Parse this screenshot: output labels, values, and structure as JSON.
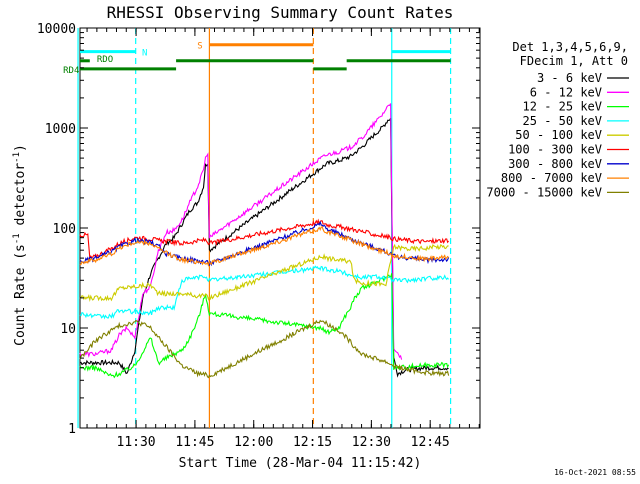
{
  "chart_data": {
    "type": "line",
    "title": "RHESSI Observing Summary Count Rates",
    "xlabel": "Start Time (28-Mar-04 11:15:42)",
    "ylabel_main": "Count Rate (s",
    "ylabel_sup": "-1",
    "ylabel_tail": " detector",
    "ylabel_close": ")",
    "x_unit": "minutes since 11:15:42",
    "xlim": [
      0,
      102
    ],
    "ylim": [
      1,
      10000
    ],
    "y_scale": "log",
    "x_ticks": [
      {
        "label": "11:30",
        "value": 14.3
      },
      {
        "label": "11:45",
        "value": 29.3
      },
      {
        "label": "12:00",
        "value": 44.3
      },
      {
        "label": "12:15",
        "value": 59.3
      },
      {
        "label": "12:30",
        "value": 74.3
      },
      {
        "label": "12:45",
        "value": 89.3
      }
    ],
    "y_ticks": [
      {
        "label": "1",
        "value": 1
      },
      {
        "label": "10",
        "value": 10
      },
      {
        "label": "100",
        "value": 100
      },
      {
        "label": "1000",
        "value": 1000
      },
      {
        "label": "10000",
        "value": 10000
      }
    ],
    "legend_header": [
      "Det 1,3,4,5,6,9,",
      "FDecim 1, Att 0"
    ],
    "legend_placement": "right",
    "series": [
      {
        "name": "3 - 6 keV",
        "color": "#000000",
        "points": [
          [
            0,
            4.5
          ],
          [
            10,
            4.5
          ],
          [
            12,
            3.5
          ],
          [
            14,
            6
          ],
          [
            16,
            20
          ],
          [
            18,
            35
          ],
          [
            20,
            50
          ],
          [
            22,
            70
          ],
          [
            24,
            80
          ],
          [
            26,
            110
          ],
          [
            28,
            150
          ],
          [
            30,
            180
          ],
          [
            31.5,
            260
          ],
          [
            32,
            420
          ],
          [
            32.6,
            450
          ],
          [
            33,
            60
          ],
          [
            61.5,
            400
          ],
          [
            63,
            440
          ],
          [
            66,
            470
          ],
          [
            69,
            520
          ],
          [
            72,
            650
          ],
          [
            75,
            850
          ],
          [
            77,
            1000
          ],
          [
            78.5,
            1200
          ],
          [
            79.2,
            1250
          ],
          [
            80,
            5
          ],
          [
            81,
            3.5
          ],
          [
            83,
            3.8
          ],
          [
            88,
            4
          ],
          [
            94,
            4
          ]
        ]
      },
      {
        "name": "6 - 12 keV",
        "color": "#ff00ff",
        "points": [
          [
            0,
            5.5
          ],
          [
            4,
            5.5
          ],
          [
            8,
            6
          ],
          [
            10,
            8.5
          ],
          [
            12,
            10
          ],
          [
            14,
            8
          ],
          [
            16,
            22
          ],
          [
            18,
            26
          ],
          [
            20,
            60
          ],
          [
            22,
            90
          ],
          [
            24,
            95
          ],
          [
            26,
            120
          ],
          [
            28,
            180
          ],
          [
            30,
            260
          ],
          [
            31.5,
            380
          ],
          [
            32,
            510
          ],
          [
            32.6,
            530
          ],
          [
            33,
            80
          ],
          [
            61.5,
            500
          ],
          [
            63,
            540
          ],
          [
            66,
            580
          ],
          [
            69,
            640
          ],
          [
            72,
            800
          ],
          [
            75,
            1100
          ],
          [
            77,
            1350
          ],
          [
            78.5,
            1650
          ],
          [
            79.2,
            1800
          ],
          [
            80,
            6
          ],
          [
            81,
            5.5
          ],
          [
            82,
            5
          ]
        ]
      },
      {
        "name": "12 - 25 keV",
        "color": "#00ff00",
        "points": [
          [
            0,
            4
          ],
          [
            4,
            4
          ],
          [
            8,
            3.3
          ],
          [
            10,
            3.5
          ],
          [
            14,
            4.2
          ],
          [
            18,
            8
          ],
          [
            20,
            4.5
          ],
          [
            22,
            5
          ],
          [
            24,
            5.5
          ],
          [
            26,
            6
          ],
          [
            28,
            8
          ],
          [
            30,
            12
          ],
          [
            32,
            22
          ],
          [
            33,
            14
          ],
          [
            61.5,
            10
          ],
          [
            63,
            9
          ],
          [
            66,
            10
          ],
          [
            68,
            14
          ],
          [
            69,
            16
          ],
          [
            70,
            20
          ],
          [
            72,
            25
          ],
          [
            75,
            28
          ],
          [
            78,
            32
          ],
          [
            79.5,
            35
          ],
          [
            80,
            4
          ],
          [
            86,
            4.2
          ],
          [
            90,
            4.3
          ],
          [
            94,
            4.3
          ]
        ]
      },
      {
        "name": "25 - 50 keV",
        "color": "#00ffff",
        "points": [
          [
            0,
            14
          ],
          [
            4,
            13
          ],
          [
            8,
            13
          ],
          [
            10,
            15
          ],
          [
            14,
            14.5
          ],
          [
            18,
            14
          ],
          [
            20,
            16
          ],
          [
            24,
            16
          ],
          [
            26,
            30
          ],
          [
            30,
            32
          ],
          [
            32,
            33
          ],
          [
            33,
            30
          ],
          [
            61.5,
            40
          ],
          [
            63,
            38
          ],
          [
            66,
            37
          ],
          [
            69,
            34
          ],
          [
            72,
            32
          ],
          [
            75,
            33
          ],
          [
            78,
            32
          ],
          [
            80,
            30
          ],
          [
            84,
            30
          ],
          [
            88,
            31
          ],
          [
            91,
            32
          ],
          [
            94,
            32
          ]
        ]
      },
      {
        "name": "50 - 100 keV",
        "color": "#cccc00",
        "points": [
          [
            0,
            20
          ],
          [
            4,
            20
          ],
          [
            8,
            20
          ],
          [
            10,
            25
          ],
          [
            14,
            26
          ],
          [
            18,
            27
          ],
          [
            20,
            22
          ],
          [
            24,
            22
          ],
          [
            26,
            22
          ],
          [
            30,
            21
          ],
          [
            32,
            21
          ],
          [
            33,
            20
          ],
          [
            61.5,
            52
          ],
          [
            63,
            50
          ],
          [
            66,
            48
          ],
          [
            69,
            46
          ],
          [
            70,
            30
          ],
          [
            72,
            28
          ],
          [
            75,
            28
          ],
          [
            78,
            27
          ],
          [
            80,
            65
          ],
          [
            84,
            62
          ],
          [
            88,
            63
          ],
          [
            91,
            65
          ],
          [
            94,
            65
          ]
        ]
      },
      {
        "name": "100 - 300 keV",
        "color": "#ff0000",
        "points": [
          [
            0,
            85
          ],
          [
            2,
            85
          ],
          [
            2.5,
            50
          ],
          [
            4,
            52
          ],
          [
            8,
            62
          ],
          [
            10,
            70
          ],
          [
            14,
            80
          ],
          [
            18,
            78
          ],
          [
            20,
            75
          ],
          [
            24,
            72
          ],
          [
            26,
            70
          ],
          [
            30,
            74
          ],
          [
            32,
            76
          ],
          [
            33,
            70
          ],
          [
            61.5,
            115
          ],
          [
            63,
            108
          ],
          [
            66,
            103
          ],
          [
            69,
            98
          ],
          [
            72,
            92
          ],
          [
            75,
            86
          ],
          [
            78,
            82
          ],
          [
            80,
            78
          ],
          [
            84,
            75
          ],
          [
            88,
            73
          ],
          [
            91,
            74
          ],
          [
            94,
            76
          ]
        ]
      },
      {
        "name": "300 - 800 keV",
        "color": "#0000cc",
        "points": [
          [
            0,
            46
          ],
          [
            4,
            50
          ],
          [
            8,
            58
          ],
          [
            10,
            65
          ],
          [
            14,
            75
          ],
          [
            18,
            72
          ],
          [
            20,
            66
          ],
          [
            22,
            55
          ],
          [
            24,
            52
          ],
          [
            26,
            50
          ],
          [
            30,
            47
          ],
          [
            32,
            46
          ],
          [
            33,
            44
          ],
          [
            61.5,
            110
          ],
          [
            63,
            98
          ],
          [
            66,
            88
          ],
          [
            69,
            78
          ],
          [
            72,
            70
          ],
          [
            75,
            64
          ],
          [
            78,
            58
          ],
          [
            80,
            52
          ],
          [
            84,
            50
          ],
          [
            88,
            48
          ],
          [
            91,
            48
          ],
          [
            94,
            49
          ]
        ]
      },
      {
        "name": "800 - 7000 keV",
        "color": "#ff8000",
        "points": [
          [
            0,
            45
          ],
          [
            4,
            48
          ],
          [
            8,
            55
          ],
          [
            10,
            63
          ],
          [
            14,
            72
          ],
          [
            18,
            70
          ],
          [
            20,
            62
          ],
          [
            22,
            56
          ],
          [
            24,
            52
          ],
          [
            26,
            48
          ],
          [
            30,
            46
          ],
          [
            32,
            45
          ],
          [
            33,
            44
          ],
          [
            61.5,
            100
          ],
          [
            63,
            92
          ],
          [
            66,
            84
          ],
          [
            69,
            76
          ],
          [
            72,
            68
          ],
          [
            75,
            62
          ],
          [
            78,
            57
          ],
          [
            80,
            53
          ],
          [
            84,
            51
          ],
          [
            88,
            49
          ],
          [
            91,
            50
          ],
          [
            94,
            51
          ]
        ]
      },
      {
        "name": "7000 - 15000 keV",
        "color": "#808000",
        "points": [
          [
            0,
            5
          ],
          [
            2,
            6
          ],
          [
            4,
            7.5
          ],
          [
            8,
            9.5
          ],
          [
            10,
            10.5
          ],
          [
            12,
            11
          ],
          [
            14,
            11.5
          ],
          [
            16,
            11
          ],
          [
            18,
            10
          ],
          [
            20,
            8
          ],
          [
            22,
            6.5
          ],
          [
            24,
            5.2
          ],
          [
            26,
            4.2
          ],
          [
            30,
            3.5
          ],
          [
            32,
            3.4
          ],
          [
            33,
            3.3
          ],
          [
            61.5,
            12
          ],
          [
            63,
            11
          ],
          [
            66,
            9.5
          ],
          [
            68,
            8
          ],
          [
            70,
            6.5
          ],
          [
            72,
            5.5
          ],
          [
            75,
            5
          ],
          [
            78,
            4.6
          ],
          [
            80,
            4.2
          ],
          [
            84,
            3.8
          ],
          [
            88,
            3.6
          ],
          [
            91,
            3.5
          ],
          [
            94,
            3.5
          ]
        ]
      }
    ],
    "annotations": {
      "flag_labels": [
        {
          "text": "N",
          "color": "#00ffff",
          "x": 15.8,
          "y": 5800
        },
        {
          "text": "RDO",
          "color": "#008000",
          "x": 4.3,
          "y": 5000
        },
        {
          "text": "RD4",
          "color": "#008000",
          "x": -4.3,
          "y": 3900
        },
        {
          "text": "S",
          "color": "#ff8000",
          "x": 29.9,
          "y": 6800
        }
      ],
      "flag_bars": [
        {
          "color": "#00ffff",
          "y": 5800,
          "from": 0,
          "to": 14.2
        },
        {
          "color": "#00ffff",
          "y": 5800,
          "from": 79.5,
          "to": 94.5
        },
        {
          "color": "#008000",
          "y": 4700,
          "from": 68,
          "to": 94.5
        },
        {
          "color": "#008000",
          "y": 4700,
          "from": 24.5,
          "to": 59.5
        },
        {
          "color": "#008000",
          "y": 4700,
          "from": 0,
          "to": 2.5
        },
        {
          "color": "#008000",
          "y": 3900,
          "from": 0,
          "to": 24.5
        },
        {
          "color": "#008000",
          "y": 3900,
          "from": 59.5,
          "to": 68
        },
        {
          "color": "#ff8000",
          "y": 6800,
          "from": 33,
          "to": 59.5
        }
      ],
      "vlines": [
        {
          "x": 33,
          "color": "#ff8000",
          "dashed": false
        },
        {
          "x": 59.5,
          "color": "#ff8000",
          "dashed": true
        },
        {
          "x": 14.2,
          "color": "#00ffff",
          "dashed": true
        },
        {
          "x": 79.5,
          "color": "#00ffff",
          "dashed": false
        },
        {
          "x": 94.5,
          "color": "#00ffff",
          "dashed": true
        },
        {
          "x": -0.5,
          "color": "#00ffff",
          "dashed": false
        }
      ]
    },
    "grid": false,
    "footer_timestamp": "16-Oct-2021 08:55"
  }
}
